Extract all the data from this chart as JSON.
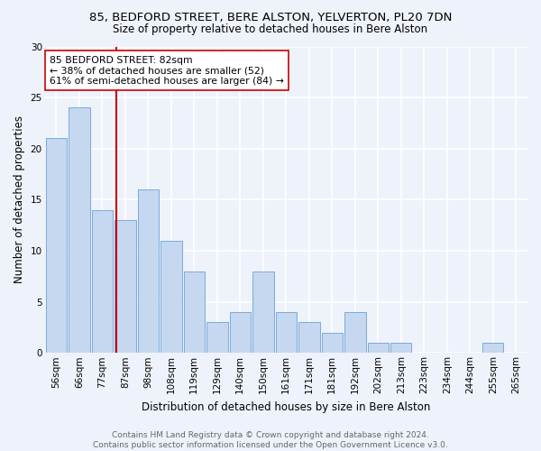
{
  "title1": "85, BEDFORD STREET, BERE ALSTON, YELVERTON, PL20 7DN",
  "title2": "Size of property relative to detached houses in Bere Alston",
  "xlabel": "Distribution of detached houses by size in Bere Alston",
  "ylabel": "Number of detached properties",
  "categories": [
    "56sqm",
    "66sqm",
    "77sqm",
    "87sqm",
    "98sqm",
    "108sqm",
    "119sqm",
    "129sqm",
    "140sqm",
    "150sqm",
    "161sqm",
    "171sqm",
    "181sqm",
    "192sqm",
    "202sqm",
    "213sqm",
    "223sqm",
    "234sqm",
    "244sqm",
    "255sqm",
    "265sqm"
  ],
  "values": [
    21,
    24,
    14,
    13,
    16,
    11,
    8,
    3,
    4,
    8,
    4,
    3,
    2,
    4,
    1,
    1,
    0,
    0,
    0,
    1,
    0
  ],
  "bar_color": "#c5d8f0",
  "bar_edge_color": "#7aabdb",
  "annotation_text": "85 BEDFORD STREET: 82sqm\n← 38% of detached houses are smaller (52)\n61% of semi-detached houses are larger (84) →",
  "vline_color": "#cc0000",
  "vline_x_index": 2.6,
  "ylim": [
    0,
    30
  ],
  "yticks": [
    0,
    5,
    10,
    15,
    20,
    25,
    30
  ],
  "background_color": "#eef2fa",
  "grid_color": "#ffffff",
  "footer_text": "Contains HM Land Registry data © Crown copyright and database right 2024.\nContains public sector information licensed under the Open Government Licence v3.0.",
  "annotation_box_color": "#ffffff",
  "annotation_box_edge": "#cc0000",
  "title1_fontsize": 9.5,
  "title2_fontsize": 8.5,
  "xlabel_fontsize": 8.5,
  "ylabel_fontsize": 8.5,
  "tick_fontsize": 7.5,
  "annotation_fontsize": 7.8,
  "footer_fontsize": 6.5
}
